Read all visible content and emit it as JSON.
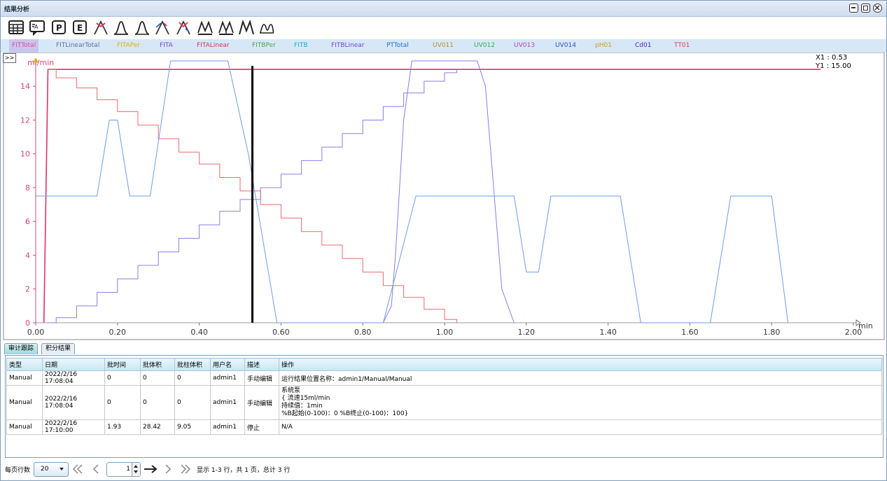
{
  "window": {
    "title": "结果分析"
  },
  "series_tabs": [
    {
      "label": "FITTotal",
      "color": "#e05090"
    },
    {
      "label": "FITLinearTotal",
      "color": "#5c6fa0"
    },
    {
      "label": "FITAPer",
      "color": "#e0b000"
    },
    {
      "label": "FITA",
      "color": "#7b3fd0"
    },
    {
      "label": "FITALinear",
      "color": "#e03050"
    },
    {
      "label": "FITBPer",
      "color": "#50a050"
    },
    {
      "label": "FITB",
      "color": "#10b0d0"
    },
    {
      "label": "FITBLinear",
      "color": "#7b3fd0"
    },
    {
      "label": "PTTotal",
      "color": "#2070d0"
    },
    {
      "label": "UV011",
      "color": "#c08a30"
    },
    {
      "label": "UV012",
      "color": "#30b040"
    },
    {
      "label": "UV013",
      "color": "#b040c0"
    },
    {
      "label": "UV014",
      "color": "#3050c0"
    },
    {
      "label": "pH01",
      "color": "#d0a000"
    },
    {
      "label": "Cd01",
      "color": "#5020c0"
    },
    {
      "label": "TT01",
      "color": "#e04050"
    }
  ],
  "expand_label": ">>",
  "cursor_readout": {
    "x": "X1 : 0.53",
    "y": "Y1 : 15.00"
  },
  "chart_data": {
    "type": "line",
    "ylabel": "ml/min",
    "xlabel": "min",
    "xlim": [
      0,
      2.0
    ],
    "ylim": [
      0,
      15.5
    ],
    "x_ticks": [
      "0.00",
      "0.20",
      "0.40",
      "0.60",
      "0.80",
      "1.00",
      "1.20",
      "1.40",
      "1.60",
      "1.80",
      "2.00"
    ],
    "y_ticks": [
      "0",
      "2",
      "4",
      "6",
      "8",
      "10",
      "12",
      "14"
    ],
    "cursor_x": 0.53,
    "series": [
      {
        "color": "#e0306a",
        "width": 1.6,
        "points": [
          [
            0.02,
            0
          ],
          [
            0.03,
            15
          ],
          [
            1.92,
            15
          ]
        ]
      },
      {
        "color": "#ec6a6a",
        "width": 1,
        "step": true,
        "points": [
          [
            0.03,
            15
          ],
          [
            0.05,
            14.5
          ],
          [
            0.1,
            13.9
          ],
          [
            0.15,
            13.2
          ],
          [
            0.2,
            12.5
          ],
          [
            0.25,
            11.7
          ],
          [
            0.3,
            10.9
          ],
          [
            0.35,
            10.1
          ],
          [
            0.4,
            9.4
          ],
          [
            0.45,
            8.6
          ],
          [
            0.5,
            7.8
          ],
          [
            0.55,
            7.0
          ],
          [
            0.6,
            6.2
          ],
          [
            0.65,
            5.4
          ],
          [
            0.7,
            4.6
          ],
          [
            0.75,
            3.8
          ],
          [
            0.8,
            3.0
          ],
          [
            0.85,
            2.2
          ],
          [
            0.9,
            1.5
          ],
          [
            0.95,
            0.8
          ],
          [
            1.0,
            0.2
          ],
          [
            1.03,
            0
          ]
        ]
      },
      {
        "color": "#8a7ee0",
        "width": 1,
        "step": true,
        "points": [
          [
            0.03,
            0
          ],
          [
            0.05,
            0.3
          ],
          [
            0.1,
            1.0
          ],
          [
            0.15,
            1.8
          ],
          [
            0.2,
            2.6
          ],
          [
            0.25,
            3.4
          ],
          [
            0.3,
            4.2
          ],
          [
            0.35,
            5.0
          ],
          [
            0.4,
            5.8
          ],
          [
            0.45,
            6.6
          ],
          [
            0.5,
            7.3
          ],
          [
            0.55,
            8.0
          ],
          [
            0.6,
            8.8
          ],
          [
            0.65,
            9.6
          ],
          [
            0.7,
            10.4
          ],
          [
            0.75,
            11.2
          ],
          [
            0.8,
            12.0
          ],
          [
            0.85,
            12.8
          ],
          [
            0.9,
            13.6
          ],
          [
            0.95,
            14.3
          ],
          [
            1.0,
            14.8
          ],
          [
            1.03,
            15
          ]
        ]
      },
      {
        "color": "#8c7ae8",
        "width": 1,
        "points": [
          [
            0.85,
            0
          ],
          [
            0.87,
            1
          ],
          [
            0.88,
            4
          ],
          [
            0.9,
            12
          ],
          [
            0.92,
            15.5
          ],
          [
            1.08,
            15.5
          ],
          [
            1.1,
            14
          ],
          [
            1.12,
            8
          ],
          [
            1.14,
            2
          ],
          [
            1.17,
            0
          ]
        ]
      },
      {
        "color": "#6e9cea",
        "width": 1,
        "points": [
          [
            0,
            7.5
          ],
          [
            0.15,
            7.5
          ],
          [
            0.18,
            12
          ],
          [
            0.2,
            12
          ],
          [
            0.23,
            7.5
          ],
          [
            0.28,
            7.5
          ],
          [
            0.33,
            15.5
          ],
          [
            0.47,
            15.5
          ],
          [
            0.52,
            10
          ],
          [
            0.59,
            0
          ],
          [
            0.85,
            0
          ],
          [
            0.93,
            7.5
          ],
          [
            1.17,
            7.5
          ],
          [
            1.2,
            3
          ],
          [
            1.23,
            3
          ],
          [
            1.26,
            7.5
          ],
          [
            1.43,
            7.5
          ],
          [
            1.48,
            0
          ],
          [
            1.65,
            0
          ],
          [
            1.7,
            7.5
          ],
          [
            1.8,
            7.5
          ],
          [
            1.84,
            0
          ]
        ]
      }
    ]
  },
  "bottom_tabs": [
    {
      "label": "审计跟踪"
    },
    {
      "label": "积分结果"
    }
  ],
  "table": {
    "headers": [
      "类型",
      "日期",
      "批时间",
      "批体积",
      "批柱体积",
      "用户名",
      "描述",
      "操作"
    ],
    "rows": [
      {
        "type": "Manual",
        "date": "2022/2/16 17:08:04",
        "time": "0",
        "vol": "0",
        "colvol": "0",
        "user": "admin1",
        "desc": "手动编辑",
        "op": [
          "运行结果位置名称：admin1/Manual/Manual"
        ]
      },
      {
        "type": "Manual",
        "date": "2022/2/16 17:08:04",
        "time": "0",
        "vol": "0",
        "colvol": "0",
        "user": "admin1",
        "desc": "手动编辑",
        "op": [
          "系统泵",
          "{ 流速15ml/min",
          "持续值：1min",
          "%B起始(0-100)：0 %B终止(0-100)：100}"
        ]
      },
      {
        "type": "Manual",
        "date": "2022/2/16 17:10:00",
        "time": "1.93",
        "vol": "28.42",
        "colvol": "9.05",
        "user": "admin1",
        "desc": "停止",
        "op": [
          "N/A"
        ]
      }
    ]
  },
  "pager": {
    "rows_per_page_label": "每页行数",
    "rows_per_page": "20",
    "current_page": "1",
    "summary": "显示 1-3 行，共 1 页，总计 3 行"
  }
}
